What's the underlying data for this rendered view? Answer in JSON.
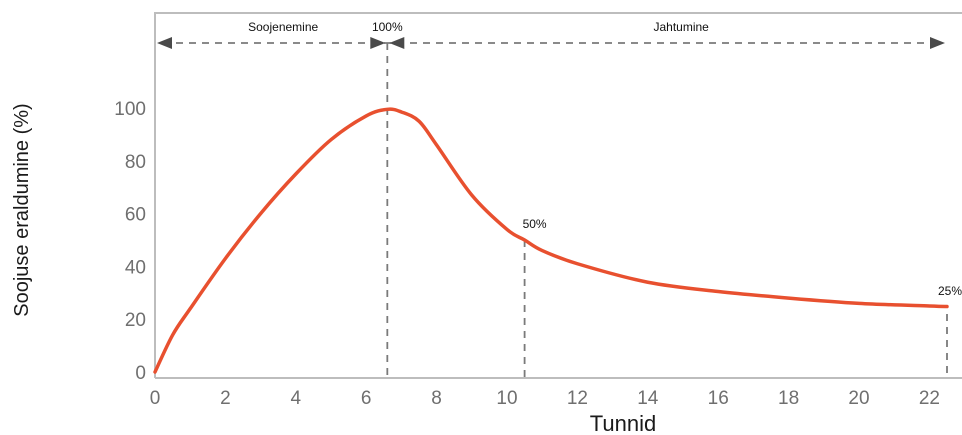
{
  "chart_data": {
    "type": "line",
    "xlabel": "Tunnid",
    "ylabel": "Soojuse eraldumine (%)",
    "xlim": [
      0,
      22.5
    ],
    "ylim": [
      0,
      105
    ],
    "x_ticks": [
      0,
      2,
      4,
      6,
      8,
      10,
      12,
      14,
      16,
      18,
      20,
      22
    ],
    "y_ticks": [
      0,
      20,
      40,
      60,
      80,
      100
    ],
    "series": [
      {
        "x": [
          0,
          0.5,
          1,
          2,
          3,
          4,
          5,
          6,
          6.6,
          7,
          7.5,
          8,
          9,
          10,
          10.5,
          11,
          12,
          14,
          16,
          18,
          20,
          22,
          22.5
        ],
        "y": [
          0,
          14,
          24,
          43,
          60,
          75,
          88,
          97,
          99.5,
          98.5,
          95,
          86,
          67,
          54,
          50,
          46,
          41,
          34,
          30.5,
          28,
          26,
          25,
          24.8
        ]
      }
    ],
    "annotations": [
      {
        "label": "Soojenemine",
        "x_start": 0,
        "x_end": 6.6
      },
      {
        "label": "100%",
        "x": 6.6,
        "y": 100
      },
      {
        "label": "Jahtumine",
        "x_start": 6.6,
        "x_end": 22.5
      },
      {
        "label": "50%",
        "x": 10.5,
        "y": 50
      },
      {
        "label": "25%",
        "x": 22.5,
        "y": 25
      }
    ],
    "grid": false,
    "colors": {
      "line": "#e8502f",
      "axes": "#bdbdbd",
      "guides": "#7a7a7a",
      "tick_labels": "#6f6f6f"
    }
  }
}
